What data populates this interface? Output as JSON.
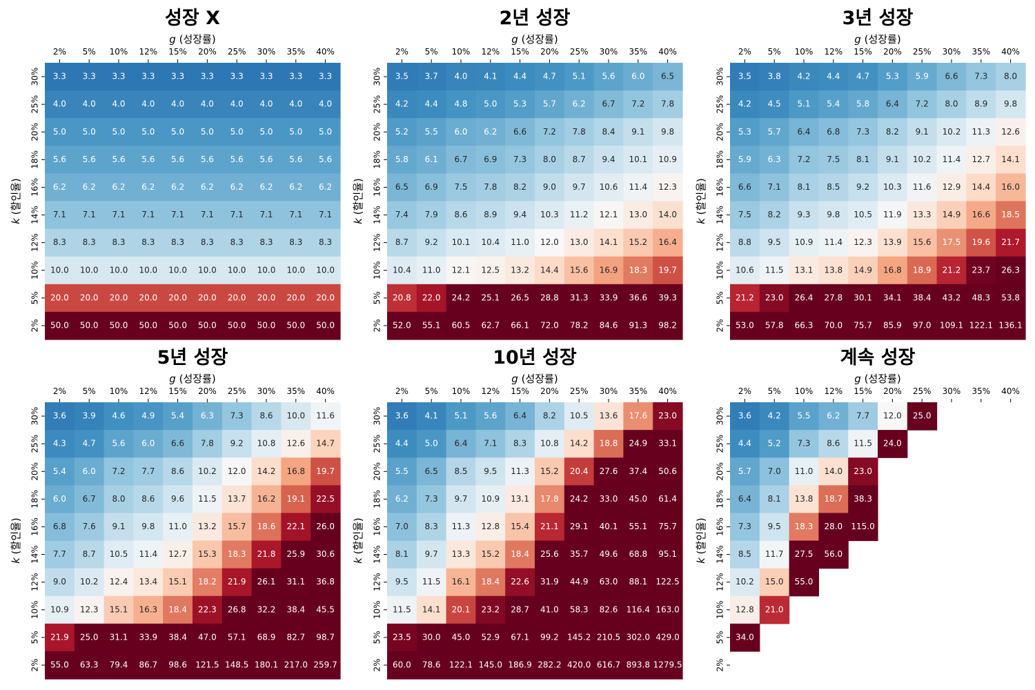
{
  "chart_data": [
    {
      "type": "heatmap",
      "title": "성장 X",
      "xlabel_var": "g",
      "xlabel_text": " (성장률)",
      "ylabel_var": "k",
      "ylabel_text": " (할인율)",
      "x_categories": [
        "2%",
        "5%",
        "10%",
        "12%",
        "15%",
        "20%",
        "25%",
        "30%",
        "35%",
        "40%"
      ],
      "y_categories": [
        "30%",
        "25%",
        "20%",
        "18%",
        "16%",
        "14%",
        "12%",
        "10%",
        "5%",
        "2%"
      ],
      "color_scale": {
        "low": 0,
        "mid": 12,
        "high": 24
      },
      "values": [
        [
          3.3,
          3.3,
          3.3,
          3.3,
          3.3,
          3.3,
          3.3,
          3.3,
          3.3,
          3.3
        ],
        [
          4.0,
          4.0,
          4.0,
          4.0,
          4.0,
          4.0,
          4.0,
          4.0,
          4.0,
          4.0
        ],
        [
          5.0,
          5.0,
          5.0,
          5.0,
          5.0,
          5.0,
          5.0,
          5.0,
          5.0,
          5.0
        ],
        [
          5.6,
          5.6,
          5.6,
          5.6,
          5.6,
          5.6,
          5.6,
          5.6,
          5.6,
          5.6
        ],
        [
          6.2,
          6.2,
          6.2,
          6.2,
          6.2,
          6.2,
          6.2,
          6.2,
          6.2,
          6.2
        ],
        [
          7.1,
          7.1,
          7.1,
          7.1,
          7.1,
          7.1,
          7.1,
          7.1,
          7.1,
          7.1
        ],
        [
          8.3,
          8.3,
          8.3,
          8.3,
          8.3,
          8.3,
          8.3,
          8.3,
          8.3,
          8.3
        ],
        [
          10.0,
          10.0,
          10.0,
          10.0,
          10.0,
          10.0,
          10.0,
          10.0,
          10.0,
          10.0
        ],
        [
          20.0,
          20.0,
          20.0,
          20.0,
          20.0,
          20.0,
          20.0,
          20.0,
          20.0,
          20.0
        ],
        [
          50.0,
          50.0,
          50.0,
          50.0,
          50.0,
          50.0,
          50.0,
          50.0,
          50.0,
          50.0
        ]
      ]
    },
    {
      "type": "heatmap",
      "title": "2년 성장",
      "xlabel_var": "g",
      "xlabel_text": " (성장률)",
      "ylabel_var": "k",
      "ylabel_text": " (할인율)",
      "x_categories": [
        "2%",
        "5%",
        "10%",
        "12%",
        "15%",
        "20%",
        "25%",
        "30%",
        "35%",
        "40%"
      ],
      "y_categories": [
        "30%",
        "25%",
        "20%",
        "18%",
        "16%",
        "14%",
        "12%",
        "10%",
        "5%",
        "2%"
      ],
      "color_scale": {
        "low": 0,
        "mid": 12,
        "high": 24
      },
      "values": [
        [
          3.5,
          3.7,
          4.0,
          4.1,
          4.4,
          4.7,
          5.1,
          5.6,
          6.0,
          6.5
        ],
        [
          4.2,
          4.4,
          4.8,
          5.0,
          5.3,
          5.7,
          6.2,
          6.7,
          7.2,
          7.8
        ],
        [
          5.2,
          5.5,
          6.0,
          6.2,
          6.6,
          7.2,
          7.8,
          8.4,
          9.1,
          9.8
        ],
        [
          5.8,
          6.1,
          6.7,
          6.9,
          7.3,
          8.0,
          8.7,
          9.4,
          10.1,
          10.9
        ],
        [
          6.5,
          6.9,
          7.5,
          7.8,
          8.2,
          9.0,
          9.7,
          10.6,
          11.4,
          12.3
        ],
        [
          7.4,
          7.9,
          8.6,
          8.9,
          9.4,
          10.3,
          11.2,
          12.1,
          13.0,
          14.0
        ],
        [
          8.7,
          9.2,
          10.1,
          10.4,
          11.0,
          12.0,
          13.0,
          14.1,
          15.2,
          16.4
        ],
        [
          10.4,
          11.0,
          12.1,
          12.5,
          13.2,
          14.4,
          15.6,
          16.9,
          18.3,
          19.7
        ],
        [
          20.8,
          22.0,
          24.2,
          25.1,
          26.5,
          28.8,
          31.3,
          33.9,
          36.6,
          39.3
        ],
        [
          52.0,
          55.1,
          60.5,
          62.7,
          66.1,
          72.0,
          78.2,
          84.6,
          91.3,
          98.2
        ]
      ]
    },
    {
      "type": "heatmap",
      "title": "3년 성장",
      "xlabel_var": "g",
      "xlabel_text": " (성장률)",
      "ylabel_var": "k",
      "ylabel_text": " (할인율)",
      "x_categories": [
        "2%",
        "5%",
        "10%",
        "12%",
        "15%",
        "20%",
        "25%",
        "30%",
        "35%",
        "40%"
      ],
      "y_categories": [
        "30%",
        "25%",
        "20%",
        "18%",
        "16%",
        "14%",
        "12%",
        "10%",
        "5%",
        "2%"
      ],
      "color_scale": {
        "low": 0,
        "mid": 12,
        "high": 24
      },
      "values": [
        [
          3.5,
          3.8,
          4.2,
          4.4,
          4.7,
          5.3,
          5.9,
          6.6,
          7.3,
          8.0
        ],
        [
          4.2,
          4.5,
          5.1,
          5.4,
          5.8,
          6.4,
          7.2,
          8.0,
          8.9,
          9.8
        ],
        [
          5.3,
          5.7,
          6.4,
          6.8,
          7.3,
          8.2,
          9.1,
          10.2,
          11.3,
          12.6
        ],
        [
          5.9,
          6.3,
          7.2,
          7.5,
          8.1,
          9.1,
          10.2,
          11.4,
          12.7,
          14.1
        ],
        [
          6.6,
          7.1,
          8.1,
          8.5,
          9.2,
          10.3,
          11.6,
          12.9,
          14.4,
          16.0
        ],
        [
          7.5,
          8.2,
          9.3,
          9.8,
          10.5,
          11.9,
          13.3,
          14.9,
          16.6,
          18.5
        ],
        [
          8.8,
          9.5,
          10.9,
          11.4,
          12.3,
          13.9,
          15.6,
          17.5,
          19.6,
          21.7
        ],
        [
          10.6,
          11.5,
          13.1,
          13.8,
          14.9,
          16.8,
          18.9,
          21.2,
          23.7,
          26.3
        ],
        [
          21.2,
          23.0,
          26.4,
          27.8,
          30.1,
          34.1,
          38.4,
          43.2,
          48.3,
          53.8
        ],
        [
          53.0,
          57.8,
          66.3,
          70.0,
          75.7,
          85.9,
          97.0,
          109.1,
          122.1,
          136.1
        ]
      ]
    },
    {
      "type": "heatmap",
      "title": "5년 성장",
      "xlabel_var": "g",
      "xlabel_text": " (성장률)",
      "ylabel_var": "k",
      "ylabel_text": " (할인율)",
      "x_categories": [
        "2%",
        "5%",
        "10%",
        "12%",
        "15%",
        "20%",
        "25%",
        "30%",
        "35%",
        "40%"
      ],
      "y_categories": [
        "30%",
        "25%",
        "20%",
        "18%",
        "16%",
        "14%",
        "12%",
        "10%",
        "5%",
        "2%"
      ],
      "color_scale": {
        "low": 0,
        "mid": 12,
        "high": 24
      },
      "values": [
        [
          3.6,
          3.9,
          4.6,
          4.9,
          5.4,
          6.3,
          7.3,
          8.6,
          10.0,
          11.6
        ],
        [
          4.3,
          4.7,
          5.6,
          6.0,
          6.6,
          7.8,
          9.2,
          10.8,
          12.6,
          14.7
        ],
        [
          5.4,
          6.0,
          7.2,
          7.7,
          8.6,
          10.2,
          12.0,
          14.2,
          16.8,
          19.7
        ],
        [
          6.0,
          6.7,
          8.0,
          8.6,
          9.6,
          11.5,
          13.7,
          16.2,
          19.1,
          22.5
        ],
        [
          6.8,
          7.6,
          9.1,
          9.8,
          11.0,
          13.2,
          15.7,
          18.6,
          22.1,
          26.0
        ],
        [
          7.7,
          8.7,
          10.5,
          11.4,
          12.7,
          15.3,
          18.3,
          21.8,
          25.9,
          30.6
        ],
        [
          9.0,
          10.2,
          12.4,
          13.4,
          15.1,
          18.2,
          21.9,
          26.1,
          31.1,
          36.8
        ],
        [
          10.9,
          12.3,
          15.1,
          16.3,
          18.4,
          22.3,
          26.8,
          32.2,
          38.4,
          45.5
        ],
        [
          21.9,
          25.0,
          31.1,
          33.9,
          38.4,
          47.0,
          57.1,
          68.9,
          82.7,
          98.7
        ],
        [
          55.0,
          63.3,
          79.4,
          86.7,
          98.6,
          121.5,
          148.5,
          180.1,
          217.0,
          259.7
        ]
      ]
    },
    {
      "type": "heatmap",
      "title": "10년 성장",
      "xlabel_var": "g",
      "xlabel_text": " (성장률)",
      "ylabel_var": "k",
      "ylabel_text": " (할인율)",
      "x_categories": [
        "2%",
        "5%",
        "10%",
        "12%",
        "15%",
        "20%",
        "25%",
        "30%",
        "35%",
        "40%"
      ],
      "y_categories": [
        "30%",
        "25%",
        "20%",
        "18%",
        "16%",
        "14%",
        "12%",
        "10%",
        "5%",
        "2%"
      ],
      "color_scale": {
        "low": 0,
        "mid": 12,
        "high": 24
      },
      "values": [
        [
          3.6,
          4.1,
          5.1,
          5.6,
          6.4,
          8.2,
          10.5,
          13.6,
          17.6,
          23.0
        ],
        [
          4.4,
          5.0,
          6.4,
          7.1,
          8.3,
          10.8,
          14.2,
          18.8,
          24.9,
          33.1
        ],
        [
          5.5,
          6.5,
          8.5,
          9.5,
          11.3,
          15.2,
          20.4,
          27.6,
          37.4,
          50.6
        ],
        [
          6.2,
          7.3,
          9.7,
          10.9,
          13.1,
          17.8,
          24.2,
          33.0,
          45.0,
          61.4
        ],
        [
          7.0,
          8.3,
          11.3,
          12.8,
          15.4,
          21.1,
          29.1,
          40.1,
          55.1,
          75.7
        ],
        [
          8.1,
          9.7,
          13.3,
          15.2,
          18.4,
          25.6,
          35.7,
          49.6,
          68.8,
          95.1
        ],
        [
          9.5,
          11.5,
          16.1,
          18.4,
          22.6,
          31.9,
          44.9,
          63.0,
          88.1,
          122.5
        ],
        [
          11.5,
          14.1,
          20.1,
          23.2,
          28.7,
          41.0,
          58.3,
          82.6,
          116.4,
          163.0
        ],
        [
          23.5,
          30.0,
          45.0,
          52.9,
          67.1,
          99.2,
          145.2,
          210.5,
          302.0,
          429.0
        ],
        [
          60.0,
          78.6,
          122.1,
          145.0,
          186.9,
          282.2,
          420.0,
          616.7,
          893.8,
          1279.5
        ]
      ]
    },
    {
      "type": "heatmap",
      "title": "계속 성장",
      "xlabel_var": "g",
      "xlabel_text": " (성장률)",
      "ylabel_var": "k",
      "ylabel_text": " (할인율)",
      "x_categories": [
        "2%",
        "5%",
        "10%",
        "12%",
        "15%",
        "20%",
        "25%",
        "30%",
        "35%",
        "40%"
      ],
      "y_categories": [
        "30%",
        "25%",
        "20%",
        "18%",
        "16%",
        "14%",
        "12%",
        "10%",
        "5%",
        "2%"
      ],
      "color_scale": {
        "low": 0,
        "mid": 12,
        "high": 24
      },
      "values": [
        [
          3.6,
          4.2,
          5.5,
          6.2,
          7.7,
          12.0,
          25.0,
          null,
          null,
          null
        ],
        [
          4.4,
          5.2,
          7.3,
          8.6,
          11.5,
          24.0,
          null,
          null,
          null,
          null
        ],
        [
          5.7,
          7.0,
          11.0,
          14.0,
          23.0,
          null,
          null,
          null,
          null,
          null
        ],
        [
          6.4,
          8.1,
          13.8,
          18.7,
          38.3,
          null,
          null,
          null,
          null,
          null
        ],
        [
          7.3,
          9.5,
          18.3,
          28.0,
          115.0,
          null,
          null,
          null,
          null,
          null
        ],
        [
          8.5,
          11.7,
          27.5,
          56.0,
          null,
          null,
          null,
          null,
          null,
          null
        ],
        [
          10.2,
          15.0,
          55.0,
          null,
          null,
          null,
          null,
          null,
          null,
          null
        ],
        [
          12.8,
          21.0,
          null,
          null,
          null,
          null,
          null,
          null,
          null,
          null
        ],
        [
          34.0,
          null,
          null,
          null,
          null,
          null,
          null,
          null,
          null,
          null
        ],
        [
          null,
          null,
          null,
          null,
          null,
          null,
          null,
          null,
          null,
          null
        ]
      ]
    }
  ]
}
